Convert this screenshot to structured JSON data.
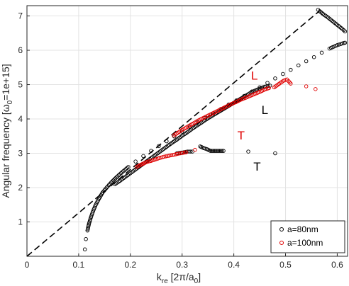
{
  "chart_data": {
    "type": "scatter",
    "xlabel_main": "k",
    "xlabel_sub": "re",
    "xlabel_unit_open": " [2π/a",
    "xlabel_unit_sub": "0",
    "xlabel_unit_close": "]",
    "ylabel_main": "Angular frequency [ω",
    "ylabel_sub": "0",
    "ylabel_tail": "=1e+15]",
    "xlim": [
      0,
      0.62
    ],
    "ylim": [
      0,
      7.3
    ],
    "xticks": [
      0,
      0.1,
      0.2,
      0.3,
      0.4,
      0.5,
      0.6
    ],
    "xtick_labels": [
      "0",
      "0.1",
      "0.2",
      "0.3",
      "0.4",
      "0.5",
      "0.6"
    ],
    "yticks": [
      1,
      2,
      3,
      4,
      5,
      6,
      7
    ],
    "ytick_labels": [
      "1",
      "2",
      "3",
      "4",
      "5",
      "6",
      "7"
    ],
    "grid": true,
    "legend": {
      "placement": "bottom-right",
      "entries": [
        {
          "label": "a=80nm",
          "color": "#000000"
        },
        {
          "label": "a=100nm",
          "color": "#e00000"
        }
      ]
    },
    "light_line": {
      "x": [
        0,
        0.57
      ],
      "y": [
        0,
        7.2
      ],
      "style": "dashed",
      "color": "#000000"
    },
    "series": [
      {
        "name": "a=80nm",
        "color": "#000000",
        "segments": [
          {
            "x": [
              0.112,
              0.114,
              0.117,
              0.12,
              0.124,
              0.128,
              0.133,
              0.139,
              0.146,
              0.154,
              0.163,
              0.173,
              0.184,
              0.196,
              0.21,
              0.225,
              0.24,
              0.255,
              0.27,
              0.285,
              0.3,
              0.315,
              0.33,
              0.345,
              0.36,
              0.375,
              0.39,
              0.405,
              0.42,
              0.435,
              0.45,
              0.465,
              0.48,
              0.495,
              0.51,
              0.525,
              0.54,
              0.555,
              0.57,
              0.585,
              0.6,
              0.61,
              0.615
            ],
            "y": [
              0.2,
              0.5,
              0.75,
              0.95,
              1.15,
              1.32,
              1.5,
              1.67,
              1.85,
              2.0,
              2.15,
              2.3,
              2.45,
              2.6,
              2.76,
              2.92,
              3.07,
              3.21,
              3.35,
              3.49,
              3.63,
              3.77,
              3.9,
              4.03,
              4.16,
              4.29,
              4.42,
              4.54,
              4.67,
              4.8,
              4.92,
              5.05,
              5.18,
              5.31,
              5.43,
              5.56,
              5.68,
              5.8,
              5.93,
              6.05,
              6.15,
              6.2,
              6.22
            ]
          },
          {
            "x": [
              0.17,
              0.18,
              0.19,
              0.2,
              0.21,
              0.22,
              0.23,
              0.24,
              0.25,
              0.26,
              0.27,
              0.28,
              0.29,
              0.3,
              0.31,
              0.32,
              0.33,
              0.34,
              0.35,
              0.36,
              0.37,
              0.38,
              0.39,
              0.4,
              0.41,
              0.42,
              0.43,
              0.44,
              0.45,
              0.46,
              0.47
            ],
            "y": [
              2.1,
              2.2,
              2.31,
              2.42,
              2.53,
              2.64,
              2.75,
              2.86,
              2.97,
              3.08,
              3.19,
              3.3,
              3.4,
              3.51,
              3.61,
              3.72,
              3.82,
              3.92,
              4.02,
              4.11,
              4.2,
              4.29,
              4.38,
              4.47,
              4.56,
              4.65,
              4.74,
              4.82,
              4.88,
              4.94,
              4.97
            ]
          },
          {
            "x": [
              0.335,
              0.342,
              0.348,
              0.355,
              0.36,
              0.365,
              0.37,
              0.375,
              0.38,
              0.428,
              0.48
            ],
            "y": [
              3.2,
              3.15,
              3.12,
              3.07,
              3.07,
              3.07,
              3.07,
              3.07,
              3.07,
              3.05,
              3.0
            ]
          },
          {
            "x": [
              0.29,
              0.3,
              0.31,
              0.32
            ],
            "y": [
              3.0,
              3.02,
              3.05,
              3.05
            ]
          },
          {
            "x": [
              0.563,
              0.566,
              0.57,
              0.575,
              0.58,
              0.585,
              0.59,
              0.595,
              0.6,
              0.605,
              0.61,
              0.615
            ],
            "y": [
              7.18,
              7.14,
              7.09,
              7.03,
              6.98,
              6.92,
              6.86,
              6.8,
              6.74,
              6.68,
              6.62,
              6.55
            ]
          }
        ]
      },
      {
        "name": "a=100nm",
        "color": "#e00000",
        "segments": [
          {
            "x": [
              0.212,
              0.218,
              0.225,
              0.232,
              0.24,
              0.248,
              0.256,
              0.265,
              0.275,
              0.285,
              0.293,
              0.3,
              0.308
            ],
            "y": [
              2.6,
              2.65,
              2.7,
              2.75,
              2.78,
              2.82,
              2.86,
              2.9,
              2.93,
              2.96,
              2.99,
              3.01,
              3.03
            ]
          },
          {
            "x": [
              0.284,
              0.292,
              0.3,
              0.308,
              0.316,
              0.324,
              0.332,
              0.34,
              0.348,
              0.356,
              0.364,
              0.372,
              0.38,
              0.388,
              0.396,
              0.404,
              0.412,
              0.42,
              0.428,
              0.436,
              0.444,
              0.452,
              0.46,
              0.468
            ],
            "y": [
              3.52,
              3.6,
              3.68,
              3.75,
              3.82,
              3.89,
              3.96,
              4.02,
              4.08,
              4.14,
              4.2,
              4.26,
              4.32,
              4.38,
              4.44,
              4.49,
              4.55,
              4.6,
              4.65,
              4.7,
              4.75,
              4.8,
              4.86,
              4.9
            ]
          },
          {
            "x": [
              0.325,
              0.478,
              0.49,
              0.497,
              0.503,
              0.506,
              0.51,
              0.54,
              0.558
            ],
            "y": [
              3.1,
              4.92,
              5.05,
              5.12,
              5.15,
              5.1,
              5.03,
              4.95,
              4.87
            ]
          }
        ]
      }
    ],
    "annotations": [
      {
        "text": "L",
        "x": 0.44,
        "y": 5.15,
        "color": "#e00000"
      },
      {
        "text": "L",
        "x": 0.46,
        "y": 4.15,
        "color": "#000000"
      },
      {
        "text": "T",
        "x": 0.414,
        "y": 3.4,
        "color": "#e00000"
      },
      {
        "text": "T",
        "x": 0.445,
        "y": 2.5,
        "color": "#000000"
      }
    ]
  }
}
